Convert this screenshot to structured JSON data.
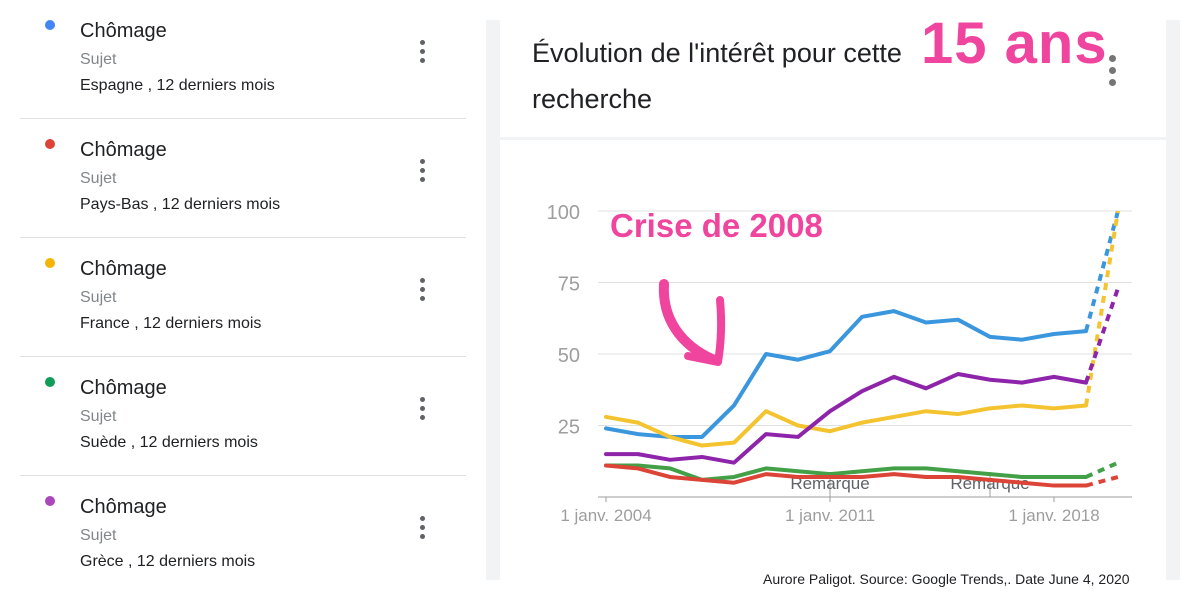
{
  "list": {
    "items": [
      {
        "title": "Chômage",
        "type": "Sujet",
        "region": "Espagne , 12 derniers mois",
        "color": "#4285f4"
      },
      {
        "title": "Chômage",
        "type": "Sujet",
        "region": "Pays-Bas , 12 derniers mois",
        "color": "#db4437"
      },
      {
        "title": "Chômage",
        "type": "Sujet",
        "region": "France , 12 derniers mois",
        "color": "#f4b400"
      },
      {
        "title": "Chômage",
        "type": "Sujet",
        "region": "Suède , 12 derniers mois",
        "color": "#0f9d58"
      },
      {
        "title": "Chômage",
        "type": "Sujet",
        "region": "Grèce , 12 derniers mois",
        "color": "#ab47bc"
      }
    ]
  },
  "panel": {
    "heading": "Évolution de l'intérêt pour cette recherche"
  },
  "annotations": {
    "years": "15 ans",
    "crisis": "Crise de 2008"
  },
  "credit": "Aurore Paligot. Source: Google  Trends,. Date  June 4, 2020",
  "chart_data": {
    "type": "line",
    "x": [
      2004,
      2005,
      2006,
      2007,
      2008,
      2009,
      2010,
      2011,
      2012,
      2013,
      2014,
      2015,
      2016,
      2017,
      2018,
      2019,
      2020
    ],
    "xtick_labels": [
      "1 janv. 2004",
      "1 janv. 2011",
      "1 janv. 2018"
    ],
    "xticks": [
      2004,
      2011,
      2018
    ],
    "ylim": [
      0,
      100
    ],
    "yticks": [
      25,
      50,
      75,
      100
    ],
    "grid": true,
    "notes": [
      {
        "text": "Remarque",
        "x": 2011
      },
      {
        "text": "Remarque",
        "x": 2016
      }
    ],
    "series": [
      {
        "color": "#3a96dd",
        "values": [
          24,
          22,
          21,
          21,
          32,
          50,
          48,
          51,
          63,
          65,
          61,
          62,
          56,
          55,
          57,
          58,
          100
        ]
      },
      {
        "color": "#f4c430",
        "values": [
          28,
          26,
          21,
          18,
          19,
          30,
          25,
          23,
          26,
          28,
          30,
          29,
          31,
          32,
          31,
          32,
          100
        ]
      },
      {
        "color": "#8e24aa",
        "values": [
          15,
          15,
          13,
          14,
          12,
          22,
          21,
          30,
          37,
          42,
          38,
          43,
          41,
          40,
          42,
          40,
          73
        ]
      },
      {
        "color": "#43a047",
        "values": [
          11,
          11,
          10,
          6,
          7,
          10,
          9,
          8,
          9,
          10,
          10,
          9,
          8,
          7,
          7,
          7,
          12
        ]
      },
      {
        "color": "#db4437",
        "values": [
          11,
          10,
          7,
          6,
          5,
          8,
          7,
          7,
          7,
          8,
          7,
          7,
          6,
          5,
          4,
          4,
          7
        ]
      }
    ]
  }
}
